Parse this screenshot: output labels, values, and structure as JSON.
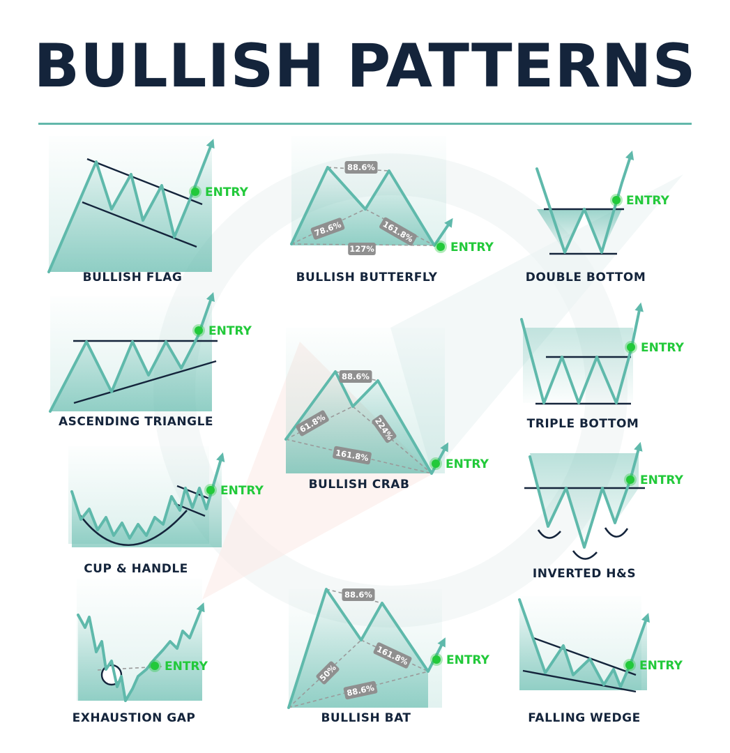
{
  "title": "BULLISH PATTERNS",
  "entry_label": "ENTRY",
  "colors": {
    "line": "#5fb9ab",
    "dark": "#14243b",
    "entry": "#22c93a",
    "badge": "#8f8f8f",
    "rule": "#62b7aa"
  },
  "patterns": [
    {
      "key": "bullish-flag",
      "label": "BULLISH FLAG"
    },
    {
      "key": "bullish-butterfly",
      "label": "BULLISH BUTTERFLY",
      "ratios": [
        "88.6%",
        "78.6%",
        "161.8%",
        "127%"
      ]
    },
    {
      "key": "double-bottom",
      "label": "DOUBLE BOTTOM"
    },
    {
      "key": "ascending-triangle",
      "label": "ASCENDING TRIANGLE"
    },
    {
      "key": "bullish-crab",
      "label": "BULLISH CRAB",
      "ratios": [
        "88.6%",
        "61.8%",
        "224%",
        "161.8%"
      ]
    },
    {
      "key": "triple-bottom",
      "label": "TRIPLE BOTTOM"
    },
    {
      "key": "cup-handle",
      "label": "CUP & HANDLE"
    },
    {
      "key": "inverted-hs",
      "label": "INVERTED H&S"
    },
    {
      "key": "exhaustion-gap",
      "label": "EXHAUSTION GAP"
    },
    {
      "key": "bullish-bat",
      "label": "BULLISH BAT",
      "ratios": [
        "88.6%",
        "50%",
        "161.8%",
        "88.6%"
      ]
    },
    {
      "key": "falling-wedge",
      "label": "FALLING WEDGE"
    }
  ]
}
